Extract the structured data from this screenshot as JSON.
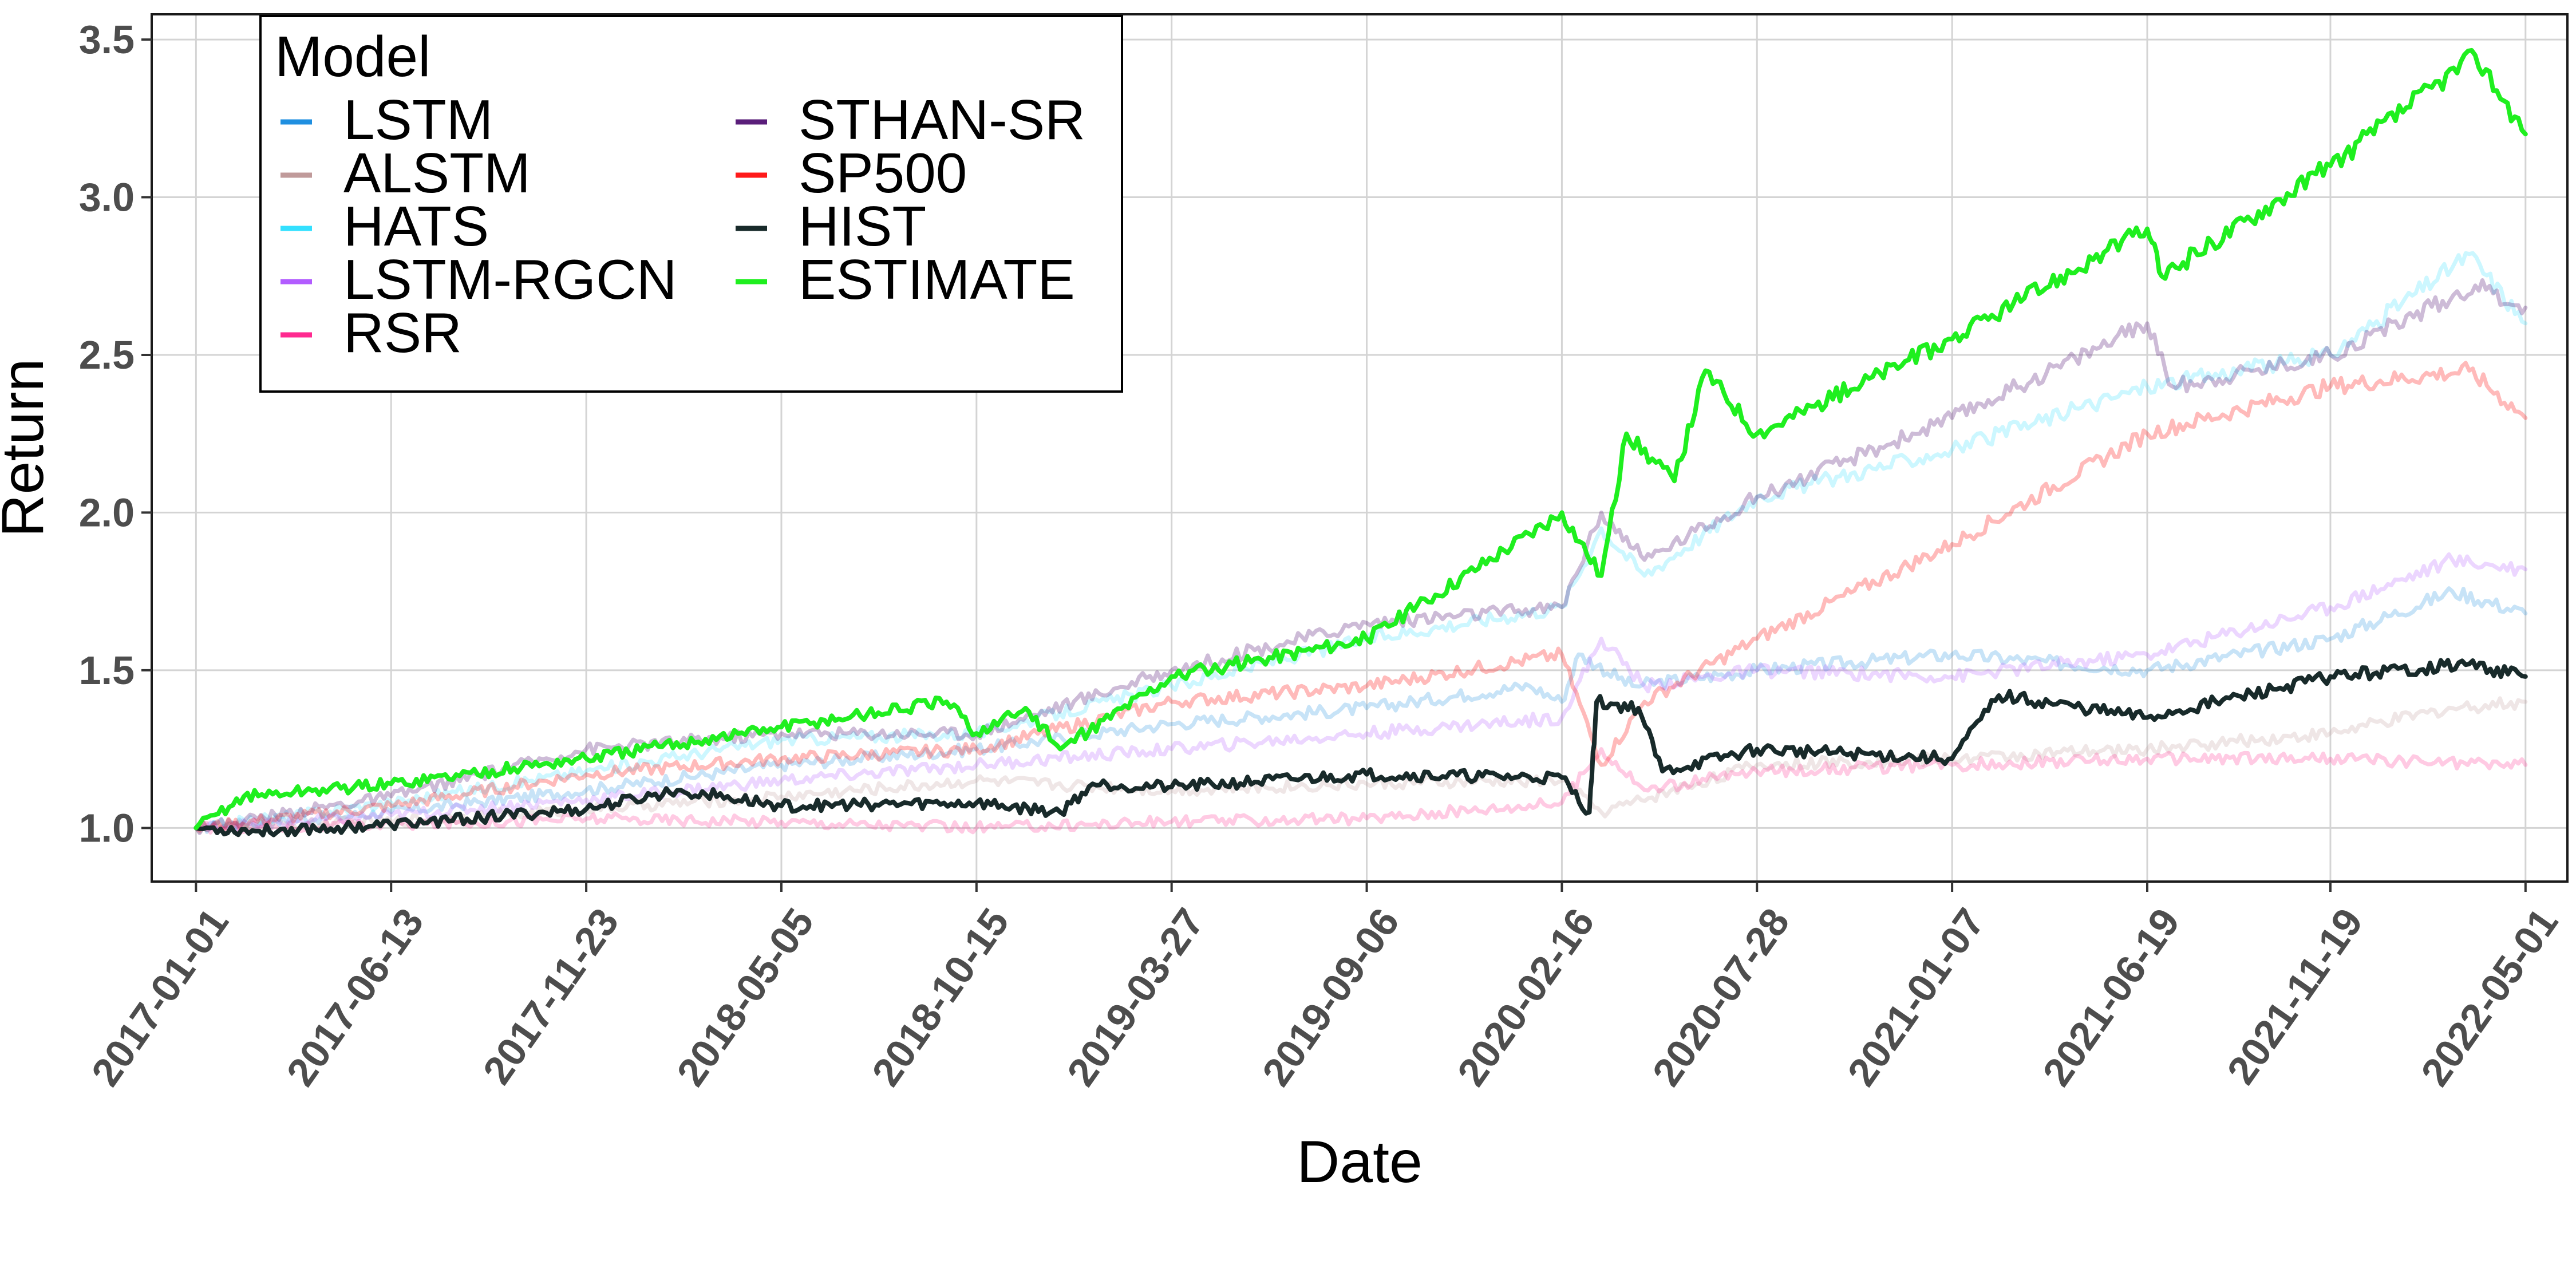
{
  "chart_data": {
    "type": "line",
    "title": "",
    "xlabel": "Date",
    "ylabel": "Return",
    "x_ticks": [
      "2017-01-01",
      "2017-06-13",
      "2017-11-23",
      "2018-05-05",
      "2018-10-15",
      "2019-03-27",
      "2019-09-06",
      "2020-02-16",
      "2020-07-28",
      "2021-01-07",
      "2021-06-19",
      "2021-11-19",
      "2022-05-01"
    ],
    "y_ticks": [
      "1.0",
      "1.5",
      "2.0",
      "2.5",
      "3.0",
      "3.5"
    ],
    "xlim": [
      "2016-11-25",
      "2022-06-05"
    ],
    "ylim": [
      0.83,
      3.58
    ],
    "grid": true,
    "legend": {
      "title": "Model",
      "position": "top-left",
      "columns": 2
    },
    "series": [
      {
        "name": "LSTM",
        "color": "#1f8fe0",
        "opacity": 0.25,
        "points": [
          [
            "2017-01-01",
            1.0
          ],
          [
            "2017-06-13",
            1.05
          ],
          [
            "2017-11-23",
            1.12
          ],
          [
            "2018-05-05",
            1.2
          ],
          [
            "2018-10-15",
            1.25
          ],
          [
            "2019-03-27",
            1.33
          ],
          [
            "2019-09-06",
            1.38
          ],
          [
            "2020-01-20",
            1.45
          ],
          [
            "2020-02-16",
            1.4
          ],
          [
            "2020-03-01",
            1.55
          ],
          [
            "2020-04-15",
            1.45
          ],
          [
            "2020-07-28",
            1.5
          ],
          [
            "2021-01-07",
            1.55
          ],
          [
            "2021-06-19",
            1.5
          ],
          [
            "2021-11-19",
            1.6
          ],
          [
            "2022-03-01",
            1.75
          ],
          [
            "2022-05-01",
            1.68
          ]
        ]
      },
      {
        "name": "ALSTM",
        "color": "#c09a9a",
        "opacity": 0.25,
        "points": [
          [
            "2017-01-01",
            1.0
          ],
          [
            "2017-06-13",
            1.02
          ],
          [
            "2017-11-23",
            1.06
          ],
          [
            "2018-05-05",
            1.1
          ],
          [
            "2018-10-15",
            1.15
          ],
          [
            "2019-03-27",
            1.12
          ],
          [
            "2019-09-06",
            1.14
          ],
          [
            "2020-02-16",
            1.15
          ],
          [
            "2020-03-20",
            1.05
          ],
          [
            "2020-07-28",
            1.2
          ],
          [
            "2021-01-07",
            1.22
          ],
          [
            "2021-06-19",
            1.25
          ],
          [
            "2021-11-19",
            1.3
          ],
          [
            "2022-03-01",
            1.38
          ],
          [
            "2022-05-01",
            1.4
          ]
        ]
      },
      {
        "name": "HATS",
        "color": "#33e0ff",
        "opacity": 0.25,
        "points": [
          [
            "2017-01-01",
            1.0
          ],
          [
            "2017-06-13",
            1.08
          ],
          [
            "2017-11-23",
            1.18
          ],
          [
            "2018-05-05",
            1.28
          ],
          [
            "2018-10-15",
            1.3
          ],
          [
            "2019-03-27",
            1.45
          ],
          [
            "2019-09-06",
            1.6
          ],
          [
            "2020-02-16",
            1.7
          ],
          [
            "2020-03-20",
            1.95
          ],
          [
            "2020-04-25",
            1.8
          ],
          [
            "2020-07-28",
            2.05
          ],
          [
            "2021-01-07",
            2.2
          ],
          [
            "2021-06-19",
            2.4
          ],
          [
            "2021-11-19",
            2.5
          ],
          [
            "2022-03-15",
            2.82
          ],
          [
            "2022-05-01",
            2.6
          ]
        ]
      },
      {
        "name": "LSTM-RGCN",
        "color": "#b25cff",
        "opacity": 0.25,
        "points": [
          [
            "2017-01-01",
            1.0
          ],
          [
            "2017-06-13",
            1.04
          ],
          [
            "2017-11-23",
            1.09
          ],
          [
            "2018-05-05",
            1.15
          ],
          [
            "2018-10-15",
            1.2
          ],
          [
            "2019-03-27",
            1.25
          ],
          [
            "2019-09-06",
            1.3
          ],
          [
            "2020-02-16",
            1.35
          ],
          [
            "2020-03-20",
            1.6
          ],
          [
            "2020-04-25",
            1.45
          ],
          [
            "2020-07-28",
            1.5
          ],
          [
            "2021-01-07",
            1.48
          ],
          [
            "2021-06-19",
            1.55
          ],
          [
            "2021-11-19",
            1.7
          ],
          [
            "2022-03-01",
            1.85
          ],
          [
            "2022-05-01",
            1.82
          ]
        ]
      },
      {
        "name": "RSR",
        "color": "#ff2a90",
        "opacity": 0.25,
        "points": [
          [
            "2017-01-01",
            1.0
          ],
          [
            "2017-06-13",
            1.01
          ],
          [
            "2017-11-23",
            1.03
          ],
          [
            "2018-05-05",
            1.02
          ],
          [
            "2018-10-15",
            1.0
          ],
          [
            "2019-03-27",
            1.02
          ],
          [
            "2019-09-06",
            1.03
          ],
          [
            "2020-02-16",
            1.08
          ],
          [
            "2020-03-20",
            1.25
          ],
          [
            "2020-04-25",
            1.12
          ],
          [
            "2020-07-28",
            1.18
          ],
          [
            "2021-01-07",
            1.2
          ],
          [
            "2021-06-19",
            1.22
          ],
          [
            "2021-11-19",
            1.22
          ],
          [
            "2022-05-01",
            1.2
          ]
        ]
      },
      {
        "name": "STHAN-SR",
        "color": "#5a1e7a",
        "opacity": 0.3,
        "points": [
          [
            "2017-01-01",
            1.0
          ],
          [
            "2017-06-13",
            1.1
          ],
          [
            "2017-11-23",
            1.25
          ],
          [
            "2018-05-05",
            1.3
          ],
          [
            "2018-10-15",
            1.3
          ],
          [
            "2019-03-27",
            1.5
          ],
          [
            "2019-09-06",
            1.65
          ],
          [
            "2020-02-16",
            1.7
          ],
          [
            "2020-03-20",
            2.0
          ],
          [
            "2020-04-25",
            1.85
          ],
          [
            "2020-07-28",
            2.05
          ],
          [
            "2021-01-07",
            2.3
          ],
          [
            "2021-06-19",
            2.6
          ],
          [
            "2021-07-10",
            2.4
          ],
          [
            "2021-11-19",
            2.5
          ],
          [
            "2022-03-20",
            2.72
          ],
          [
            "2022-05-01",
            2.65
          ]
        ]
      },
      {
        "name": "SP500",
        "color": "#ff1a1a",
        "opacity": 0.3,
        "points": [
          [
            "2017-01-01",
            1.0
          ],
          [
            "2017-06-13",
            1.07
          ],
          [
            "2017-11-23",
            1.17
          ],
          [
            "2018-05-05",
            1.22
          ],
          [
            "2018-10-15",
            1.25
          ],
          [
            "2019-03-27",
            1.4
          ],
          [
            "2019-09-06",
            1.45
          ],
          [
            "2020-02-16",
            1.55
          ],
          [
            "2020-03-20",
            1.2
          ],
          [
            "2020-04-25",
            1.4
          ],
          [
            "2020-07-28",
            1.6
          ],
          [
            "2021-01-07",
            1.9
          ],
          [
            "2021-06-19",
            2.25
          ],
          [
            "2021-11-19",
            2.4
          ],
          [
            "2022-03-15",
            2.45
          ],
          [
            "2022-05-01",
            2.3
          ]
        ]
      },
      {
        "name": "HIST",
        "color": "#182a2a",
        "opacity": 1.0,
        "points": [
          [
            "2017-01-01",
            1.0
          ],
          [
            "2017-02-20",
            0.99
          ],
          [
            "2017-06-13",
            1.01
          ],
          [
            "2017-11-23",
            1.06
          ],
          [
            "2018-02-10",
            1.12
          ],
          [
            "2018-05-05",
            1.07
          ],
          [
            "2018-10-15",
            1.08
          ],
          [
            "2018-12-24",
            1.05
          ],
          [
            "2019-01-20",
            1.14
          ],
          [
            "2019-03-27",
            1.13
          ],
          [
            "2019-09-06",
            1.17
          ],
          [
            "2020-02-16",
            1.16
          ],
          [
            "2020-03-10",
            1.05
          ],
          [
            "2020-03-16",
            1.4
          ],
          [
            "2020-04-20",
            1.38
          ],
          [
            "2020-05-10",
            1.18
          ],
          [
            "2020-07-28",
            1.25
          ],
          [
            "2021-01-07",
            1.22
          ],
          [
            "2021-02-15",
            1.42
          ],
          [
            "2021-06-19",
            1.35
          ],
          [
            "2021-11-19",
            1.48
          ],
          [
            "2022-03-15",
            1.52
          ],
          [
            "2022-05-01",
            1.48
          ]
        ]
      },
      {
        "name": "ESTIMATE",
        "color": "#1fef1f",
        "opacity": 1.0,
        "points": [
          [
            "2017-01-01",
            1.0
          ],
          [
            "2017-02-10",
            1.1
          ],
          [
            "2017-06-13",
            1.14
          ],
          [
            "2017-11-23",
            1.22
          ],
          [
            "2018-05-05",
            1.32
          ],
          [
            "2018-09-20",
            1.4
          ],
          [
            "2018-10-15",
            1.3
          ],
          [
            "2018-11-25",
            1.38
          ],
          [
            "2018-12-24",
            1.25
          ],
          [
            "2019-03-27",
            1.48
          ],
          [
            "2019-09-06",
            1.6
          ],
          [
            "2020-02-16",
            2.0
          ],
          [
            "2020-03-20",
            1.8
          ],
          [
            "2020-04-10",
            2.25
          ],
          [
            "2020-05-20",
            2.1
          ],
          [
            "2020-06-15",
            2.45
          ],
          [
            "2020-07-28",
            2.25
          ],
          [
            "2021-01-07",
            2.55
          ],
          [
            "2021-06-19",
            2.9
          ],
          [
            "2021-07-01",
            2.75
          ],
          [
            "2021-11-19",
            3.1
          ],
          [
            "2022-03-20",
            3.45
          ],
          [
            "2022-05-01",
            3.2
          ]
        ]
      }
    ]
  }
}
